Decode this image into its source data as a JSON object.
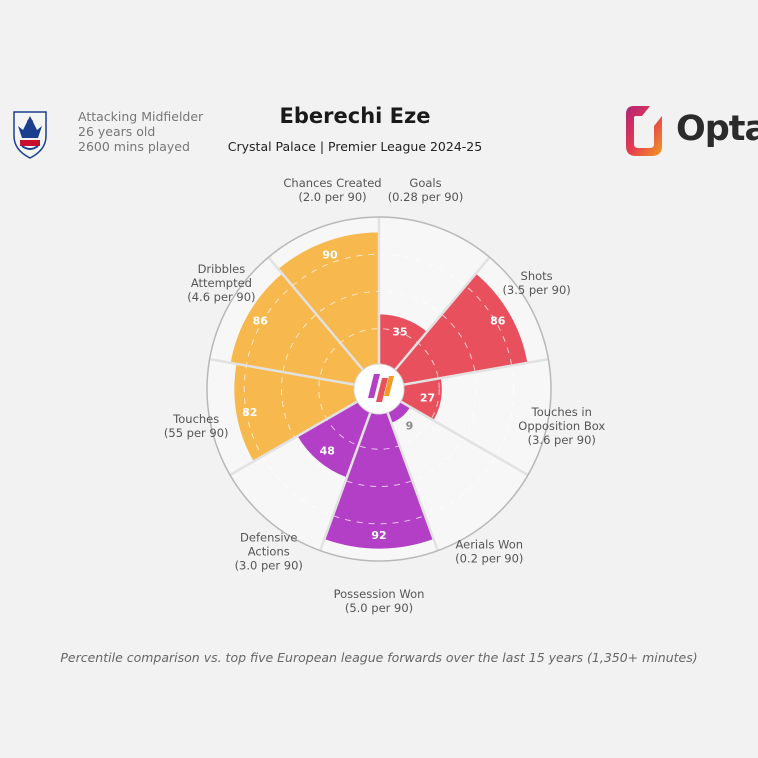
{
  "player": {
    "position": "Attacking Midfielder",
    "age": "26 years old",
    "minutes": "2600 mins played"
  },
  "title": "Eberechi Eze",
  "subtitle": "Crystal Palace | Premier League 2024-25",
  "brand": "Opta",
  "footnote": "Percentile comparison vs. top five European league forwards over the last 15 years (1,350+ minutes)",
  "icons": {
    "club": "club-crest-icon",
    "brand": "opta-logo-icon",
    "center": "theanalyst-logo-icon"
  },
  "colors": {
    "attacking": "#e9505e",
    "possession": "#f7b84d",
    "defending": "#b23fc6",
    "low_value": "#888888",
    "background": "#f2f2f2"
  },
  "chart_data": {
    "type": "polar-bar",
    "title": "Eberechi Eze",
    "subtitle": "Crystal Palace | Premier League 2024-25",
    "rlim": [
      0,
      100
    ],
    "grid": [
      25,
      50,
      75
    ],
    "categories": [
      {
        "label": [
          "Goals",
          "(0.28 per 90)"
        ],
        "value": 35,
        "group": "attacking"
      },
      {
        "label": [
          "Shots",
          "(3.5 per 90)"
        ],
        "value": 86,
        "group": "attacking"
      },
      {
        "label": [
          "Touches in",
          "Opposition Box",
          "(3.6 per 90)"
        ],
        "value": 27,
        "group": "attacking"
      },
      {
        "label": [
          "Aerials Won",
          "(0.2 per 90)"
        ],
        "value": 9,
        "group": "defending"
      },
      {
        "label": [
          "Possession Won",
          "(5.0 per 90)"
        ],
        "value": 92,
        "group": "defending"
      },
      {
        "label": [
          "Defensive",
          "Actions",
          "(3.0 per 90)"
        ],
        "value": 48,
        "group": "defending"
      },
      {
        "label": [
          "Touches",
          "(55 per 90)"
        ],
        "value": 82,
        "group": "possession"
      },
      {
        "label": [
          "Dribbles",
          "Attempted",
          "(4.6 per 90)"
        ],
        "value": 86,
        "group": "possession"
      },
      {
        "label": [
          "Chances Created",
          "(2.0 per 90)"
        ],
        "value": 90,
        "group": "possession"
      }
    ]
  }
}
